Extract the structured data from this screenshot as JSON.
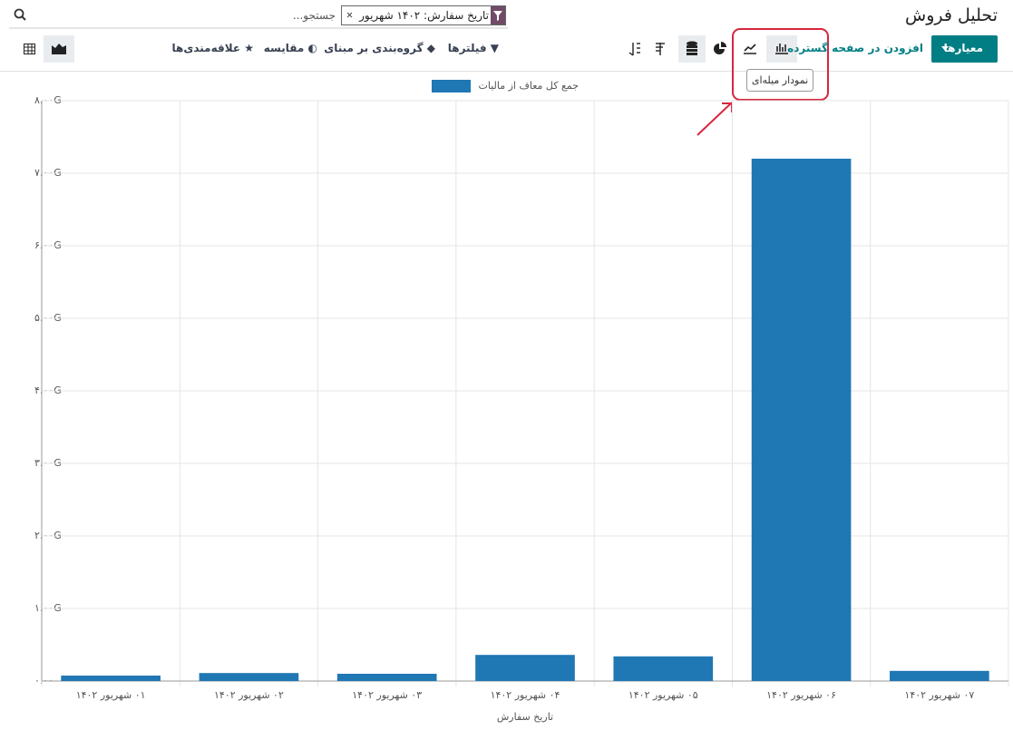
{
  "header": {
    "title": "تحلیل فروش",
    "search_facet": "تاریخ سفارش: ۱۴۰۲ شهریور",
    "search_placeholder": "جستجو..."
  },
  "toolbar": {
    "measures": "معیارها",
    "insert_spreadsheet": "افزودن در صفحه گسترده",
    "tooltip": "نمودار میله‌ای",
    "filters": "فیلترها",
    "group_by": "گروه‌بندی بر مبنای",
    "comparison": "مقایسه",
    "favorites": "علاقه‌مندی‌ها"
  },
  "chart_data": {
    "type": "bar",
    "x_label": "تاریخ سفارش",
    "categories": [
      "۰۱ شهریور ۱۴۰۲",
      "۰۲ شهریور ۱۴۰۲",
      "۰۳ شهریور ۱۴۰۲",
      "۰۴ شهریور ۱۴۰۲",
      "۰۵ شهریور ۱۴۰۲",
      "۰۶ شهریور ۱۴۰۲",
      "۰۷ شهریور ۱۴۰۲"
    ],
    "series": [
      {
        "name": "جمع کل معاف از مالیات",
        "color": "#1f77b4",
        "values": [
          75000000,
          110000000,
          100000000,
          360000000,
          340000000,
          7200000000,
          140000000
        ]
      }
    ],
    "ylim": [
      0,
      8000000000
    ],
    "yticks": [
      {
        "value": 0,
        "label": "۰.۰۰"
      },
      {
        "value": 1000000000,
        "label": "۱.۰۰G"
      },
      {
        "value": 2000000000,
        "label": "۲.۰۰G"
      },
      {
        "value": 3000000000,
        "label": "۳.۰۰G"
      },
      {
        "value": 4000000000,
        "label": "۴.۰۰G"
      },
      {
        "value": 5000000000,
        "label": "۵.۰۰G"
      },
      {
        "value": 6000000000,
        "label": "۶.۰۰G"
      },
      {
        "value": 7000000000,
        "label": "۷.۰۰G"
      },
      {
        "value": 8000000000,
        "label": "۸.۰۰G"
      }
    ],
    "grid": true
  }
}
